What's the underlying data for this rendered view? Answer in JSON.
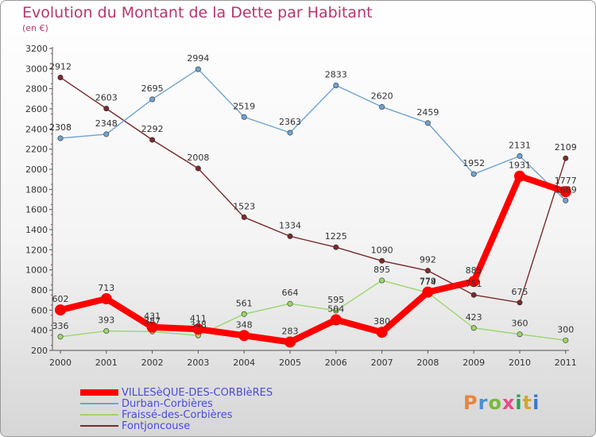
{
  "title": "Evolution du Montant de la Dette par Habitant",
  "subtitle": "(en €)",
  "brand": {
    "text": "Proxiti",
    "letter_colors": [
      "#e8843c",
      "#4a8fd4",
      "#7ab83a",
      "#e84a8a",
      "#2e9e5a",
      "#d2a62c",
      "#3a78c8"
    ]
  },
  "chart_data": {
    "type": "line",
    "title": "Evolution du Montant de la Dette par Habitant",
    "subtitle": "(en €)",
    "xlabel": "",
    "ylabel": "",
    "x": [
      2000,
      2001,
      2002,
      2003,
      2004,
      2005,
      2006,
      2007,
      2008,
      2009,
      2010,
      2011
    ],
    "x_tick_labels": [
      "2000",
      "2001",
      "2002",
      "2003",
      "2004",
      "2005",
      "2006",
      "2007",
      "2008",
      "2009",
      "2010",
      "2011"
    ],
    "ylim": [
      200,
      3200
    ],
    "y_ticks": [
      200,
      400,
      600,
      800,
      1000,
      1200,
      1400,
      1600,
      1800,
      2000,
      2200,
      2400,
      2600,
      2800,
      3000,
      3200
    ],
    "grid": "none",
    "legend_position": "bottom-left",
    "series": [
      {
        "name": "Fontjoncouse",
        "color": "#7a2a2a",
        "style": "thin",
        "values": [
          2912,
          2603,
          2292,
          2008,
          1523,
          1334,
          1225,
          1090,
          992,
          751,
          675,
          2109
        ],
        "labels": [
          "2912",
          "2603",
          "2292",
          "2008",
          "1523",
          "1334",
          "1225",
          "1090",
          "992",
          "751",
          "675",
          "2109"
        ]
      },
      {
        "name": "Durban-Corbières",
        "color": "#6ea3d3",
        "style": "thin",
        "values": [
          2308,
          2348,
          2695,
          2994,
          2519,
          2363,
          2833,
          2620,
          2459,
          1952,
          2131,
          1689
        ],
        "labels": [
          "2308",
          "2348",
          "2695",
          "2994",
          "2519",
          "2363",
          "2833",
          "2620",
          "2459",
          "1952",
          "2131",
          "1689"
        ]
      },
      {
        "name": "Fraissé-des-Corbières",
        "color": "#9bd66a",
        "style": "thin",
        "values": [
          336,
          393,
          387,
          348,
          561,
          664,
          595,
          895,
          774,
          423,
          360,
          300
        ],
        "labels": [
          "336",
          "393",
          "387",
          "348",
          "561",
          "664",
          "595",
          "895",
          "774",
          "423",
          "360",
          "300"
        ]
      },
      {
        "name": "VILLESèQUE-DES-CORBIèRES",
        "color": "#ff0000",
        "style": "thick",
        "values": [
          602,
          713,
          431,
          411,
          348,
          283,
          504,
          380,
          779,
          885,
          1931,
          1777
        ],
        "labels": [
          "602",
          "713",
          "431",
          "411",
          "348",
          "283",
          "504",
          "380",
          "779",
          "885",
          "1931",
          "1777"
        ]
      }
    ],
    "legend_order": [
      "VILLESèQUE-DES-CORBIèRES",
      "Durban-Corbières",
      "Fraissé-des-Corbières",
      "Fontjoncouse"
    ]
  }
}
